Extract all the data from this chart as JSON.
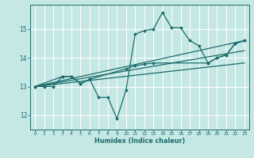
{
  "xlabel": "Humidex (Indice chaleur)",
  "bg_color": "#c5e8e5",
  "grid_color": "#ffffff",
  "line_color": "#1a6b6b",
  "xlim": [
    -0.5,
    23.5
  ],
  "ylim": [
    11.5,
    15.85
  ],
  "yticks": [
    12,
    13,
    14,
    15
  ],
  "xticks": [
    0,
    1,
    2,
    3,
    4,
    5,
    6,
    7,
    8,
    9,
    10,
    11,
    12,
    13,
    14,
    15,
    16,
    17,
    18,
    19,
    20,
    21,
    22,
    23
  ],
  "line1_x": [
    0,
    1,
    2,
    3,
    4,
    5,
    6,
    7,
    8,
    9,
    10,
    11,
    12,
    13,
    14,
    15,
    16,
    17,
    18,
    19,
    20,
    21,
    22,
    23
  ],
  "line1_y": [
    13.0,
    13.0,
    13.0,
    13.35,
    13.35,
    13.1,
    13.25,
    12.62,
    12.62,
    11.88,
    12.88,
    14.82,
    14.95,
    15.0,
    15.58,
    15.05,
    15.05,
    14.6,
    14.42,
    13.82,
    14.0,
    14.1,
    14.5,
    14.6
  ],
  "line2_x": [
    0,
    3,
    4,
    5,
    6,
    10,
    11,
    12,
    13,
    19,
    20,
    21,
    22,
    23
  ],
  "line2_y": [
    13.0,
    13.35,
    13.35,
    13.1,
    13.25,
    13.62,
    13.72,
    13.78,
    13.82,
    13.82,
    14.0,
    14.1,
    14.5,
    14.6
  ],
  "line3_x": [
    0,
    23
  ],
  "line3_y": [
    13.0,
    13.82
  ],
  "line4_x": [
    0,
    23
  ],
  "line4_y": [
    13.0,
    14.25
  ],
  "line5_x": [
    0,
    23
  ],
  "line5_y": [
    13.0,
    14.6
  ]
}
